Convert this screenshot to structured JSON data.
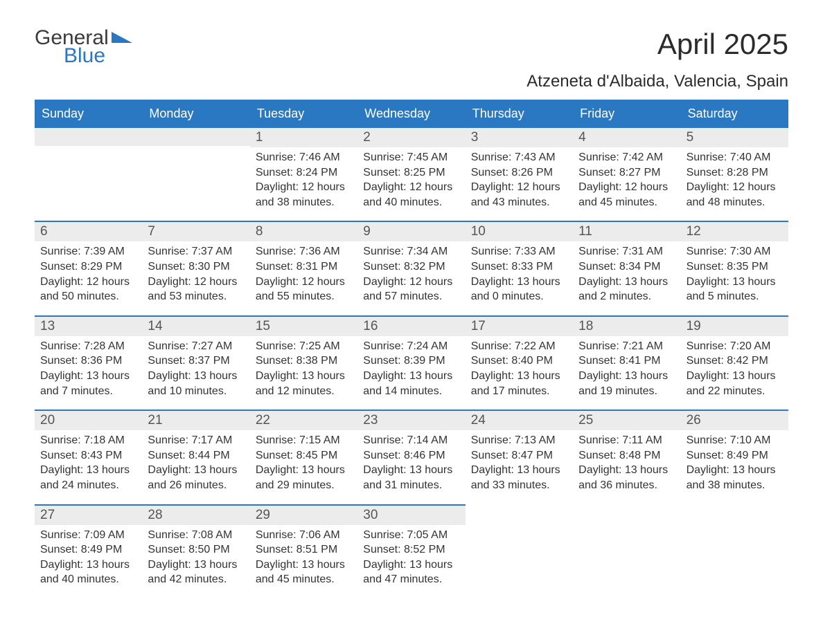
{
  "brand": {
    "general": "General",
    "blue": "Blue",
    "logo_color": "#2b78c2"
  },
  "title": "April 2025",
  "location": "Atzeneta d'Albaida, Valencia, Spain",
  "colors": {
    "header_bg": "#2b78c2",
    "header_text": "#ffffff",
    "daynum_bg": "#ececec",
    "daynum_text": "#555555",
    "body_text": "#333333",
    "rule": "#2b78c2",
    "page_bg": "#ffffff"
  },
  "typography": {
    "title_fontsize": 42,
    "location_fontsize": 24,
    "dayheader_fontsize": 18,
    "daynum_fontsize": 19,
    "body_fontsize": 16
  },
  "day_headers": [
    "Sunday",
    "Monday",
    "Tuesday",
    "Wednesday",
    "Thursday",
    "Friday",
    "Saturday"
  ],
  "labels": {
    "sunrise": "Sunrise:",
    "sunset": "Sunset:",
    "daylight": "Daylight:"
  },
  "weeks": [
    [
      null,
      null,
      {
        "n": "1",
        "sr": "7:46 AM",
        "ss": "8:24 PM",
        "dl": "12 hours and 38 minutes."
      },
      {
        "n": "2",
        "sr": "7:45 AM",
        "ss": "8:25 PM",
        "dl": "12 hours and 40 minutes."
      },
      {
        "n": "3",
        "sr": "7:43 AM",
        "ss": "8:26 PM",
        "dl": "12 hours and 43 minutes."
      },
      {
        "n": "4",
        "sr": "7:42 AM",
        "ss": "8:27 PM",
        "dl": "12 hours and 45 minutes."
      },
      {
        "n": "5",
        "sr": "7:40 AM",
        "ss": "8:28 PM",
        "dl": "12 hours and 48 minutes."
      }
    ],
    [
      {
        "n": "6",
        "sr": "7:39 AM",
        "ss": "8:29 PM",
        "dl": "12 hours and 50 minutes."
      },
      {
        "n": "7",
        "sr": "7:37 AM",
        "ss": "8:30 PM",
        "dl": "12 hours and 53 minutes."
      },
      {
        "n": "8",
        "sr": "7:36 AM",
        "ss": "8:31 PM",
        "dl": "12 hours and 55 minutes."
      },
      {
        "n": "9",
        "sr": "7:34 AM",
        "ss": "8:32 PM",
        "dl": "12 hours and 57 minutes."
      },
      {
        "n": "10",
        "sr": "7:33 AM",
        "ss": "8:33 PM",
        "dl": "13 hours and 0 minutes."
      },
      {
        "n": "11",
        "sr": "7:31 AM",
        "ss": "8:34 PM",
        "dl": "13 hours and 2 minutes."
      },
      {
        "n": "12",
        "sr": "7:30 AM",
        "ss": "8:35 PM",
        "dl": "13 hours and 5 minutes."
      }
    ],
    [
      {
        "n": "13",
        "sr": "7:28 AM",
        "ss": "8:36 PM",
        "dl": "13 hours and 7 minutes."
      },
      {
        "n": "14",
        "sr": "7:27 AM",
        "ss": "8:37 PM",
        "dl": "13 hours and 10 minutes."
      },
      {
        "n": "15",
        "sr": "7:25 AM",
        "ss": "8:38 PM",
        "dl": "13 hours and 12 minutes."
      },
      {
        "n": "16",
        "sr": "7:24 AM",
        "ss": "8:39 PM",
        "dl": "13 hours and 14 minutes."
      },
      {
        "n": "17",
        "sr": "7:22 AM",
        "ss": "8:40 PM",
        "dl": "13 hours and 17 minutes."
      },
      {
        "n": "18",
        "sr": "7:21 AM",
        "ss": "8:41 PM",
        "dl": "13 hours and 19 minutes."
      },
      {
        "n": "19",
        "sr": "7:20 AM",
        "ss": "8:42 PM",
        "dl": "13 hours and 22 minutes."
      }
    ],
    [
      {
        "n": "20",
        "sr": "7:18 AM",
        "ss": "8:43 PM",
        "dl": "13 hours and 24 minutes."
      },
      {
        "n": "21",
        "sr": "7:17 AM",
        "ss": "8:44 PM",
        "dl": "13 hours and 26 minutes."
      },
      {
        "n": "22",
        "sr": "7:15 AM",
        "ss": "8:45 PM",
        "dl": "13 hours and 29 minutes."
      },
      {
        "n": "23",
        "sr": "7:14 AM",
        "ss": "8:46 PM",
        "dl": "13 hours and 31 minutes."
      },
      {
        "n": "24",
        "sr": "7:13 AM",
        "ss": "8:47 PM",
        "dl": "13 hours and 33 minutes."
      },
      {
        "n": "25",
        "sr": "7:11 AM",
        "ss": "8:48 PM",
        "dl": "13 hours and 36 minutes."
      },
      {
        "n": "26",
        "sr": "7:10 AM",
        "ss": "8:49 PM",
        "dl": "13 hours and 38 minutes."
      }
    ],
    [
      {
        "n": "27",
        "sr": "7:09 AM",
        "ss": "8:49 PM",
        "dl": "13 hours and 40 minutes."
      },
      {
        "n": "28",
        "sr": "7:08 AM",
        "ss": "8:50 PM",
        "dl": "13 hours and 42 minutes."
      },
      {
        "n": "29",
        "sr": "7:06 AM",
        "ss": "8:51 PM",
        "dl": "13 hours and 45 minutes."
      },
      {
        "n": "30",
        "sr": "7:05 AM",
        "ss": "8:52 PM",
        "dl": "13 hours and 47 minutes."
      },
      null,
      null,
      null
    ]
  ]
}
